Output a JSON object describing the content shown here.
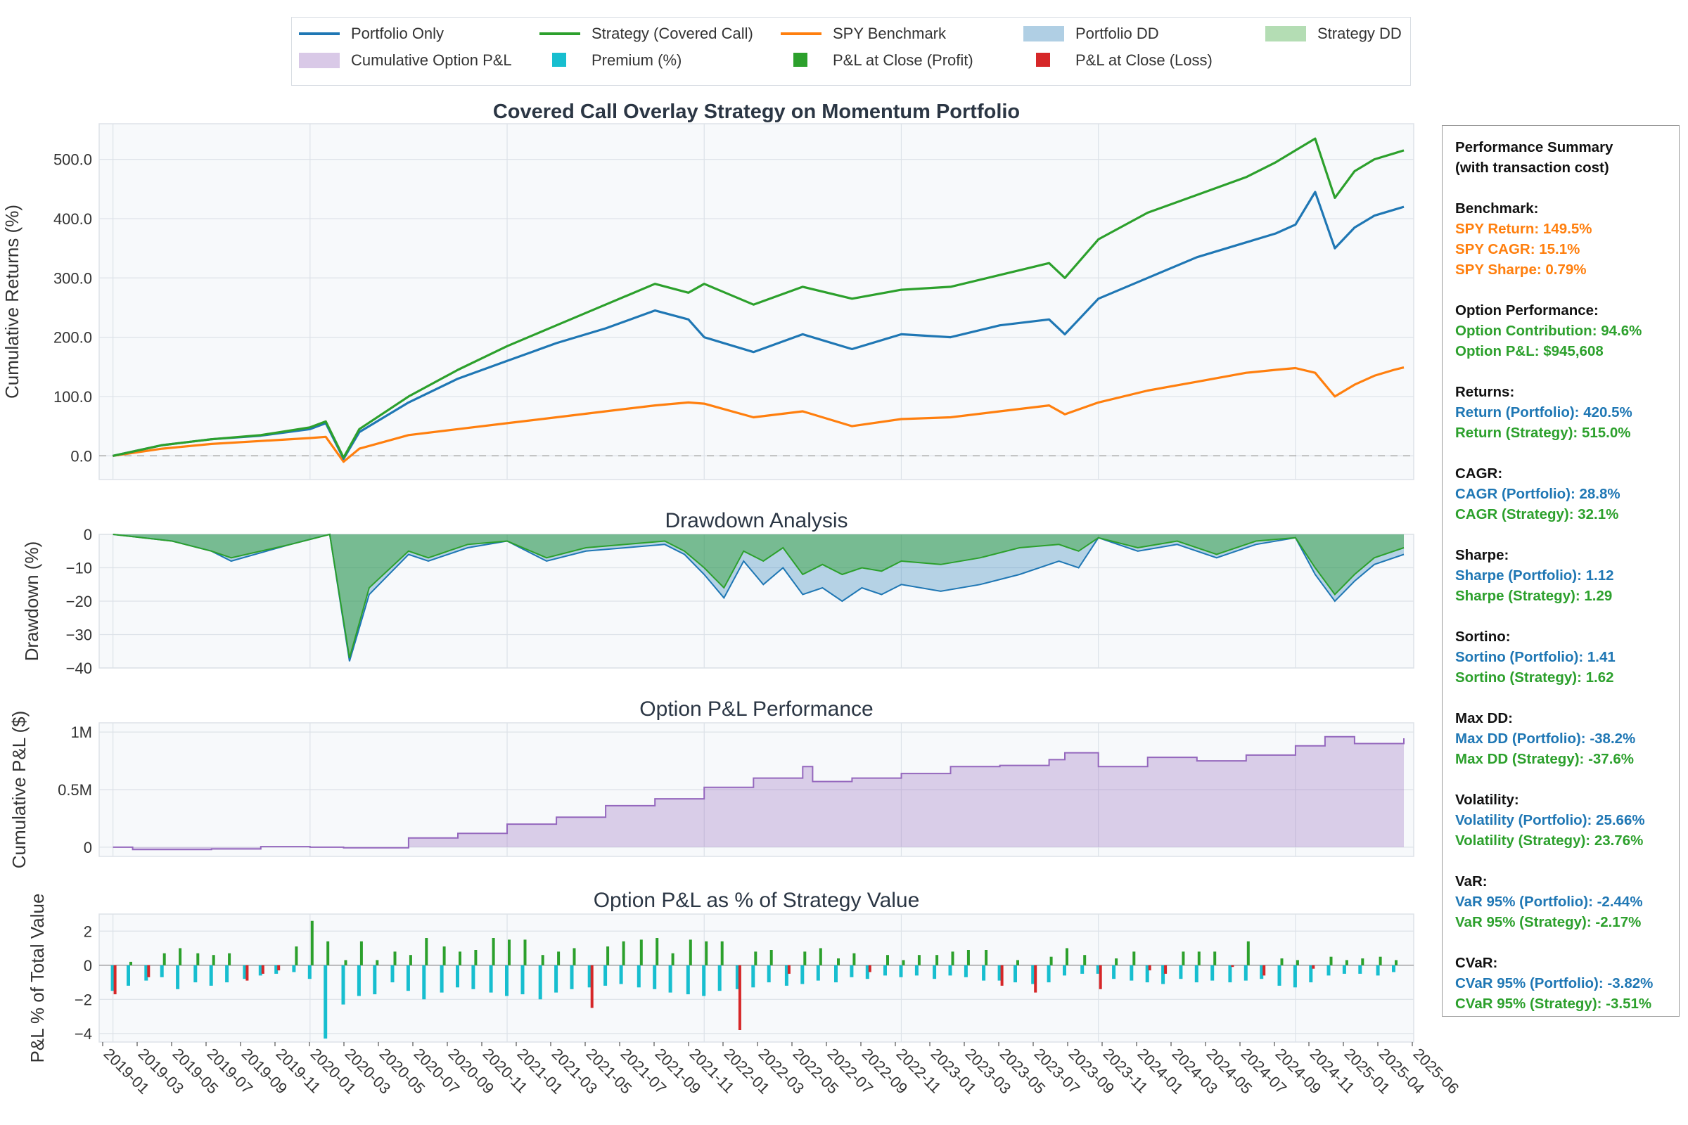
{
  "colors": {
    "portfolio": "#1f77b4",
    "strategy": "#2ca02c",
    "spy": "#ff7f0e",
    "premium": "#17becf",
    "loss": "#d62728",
    "option_pnl": "#9467bd",
    "panel_bg": "#f7f9fb",
    "grid": "#dde2e8"
  },
  "legend": {
    "items": [
      {
        "label": "Portfolio Only",
        "kind": "line",
        "color": "#1f77b4"
      },
      {
        "label": "Strategy (Covered Call)",
        "kind": "line",
        "color": "#2ca02c"
      },
      {
        "label": "SPY Benchmark",
        "kind": "line",
        "color": "#ff7f0e"
      },
      {
        "label": "Portfolio DD",
        "kind": "patch",
        "color": "#1f77b4"
      },
      {
        "label": "Strategy DD",
        "kind": "patch",
        "color": "#2ca02c"
      },
      {
        "label": "Cumulative Option P&L",
        "kind": "patch",
        "color": "#9467bd"
      },
      {
        "label": "Premium (%)",
        "kind": "square",
        "color": "#17becf"
      },
      {
        "label": "P&L at Close (Profit)",
        "kind": "square",
        "color": "#2ca02c"
      },
      {
        "label": "P&L at Close (Loss)",
        "kind": "square",
        "color": "#d62728"
      }
    ]
  },
  "chart_data": [
    {
      "type": "line",
      "title": "Covered Call Overlay Strategy on Momentum Portfolio",
      "xlabel": "",
      "ylabel": "Cumulative Returns (%)",
      "ylim": [
        -40,
        560
      ],
      "yticks": [
        "0.0",
        "100.0",
        "200.0",
        "300.0",
        "400.0",
        "500.0"
      ],
      "x_range": [
        "2019-01",
        "2025-07"
      ],
      "x": [
        2019.0,
        2019.25,
        2019.5,
        2019.75,
        2020.0,
        2020.08,
        2020.17,
        2020.25,
        2020.5,
        2020.75,
        2021.0,
        2021.25,
        2021.5,
        2021.75,
        2021.92,
        2022.0,
        2022.25,
        2022.5,
        2022.75,
        2023.0,
        2023.25,
        2023.5,
        2023.75,
        2023.83,
        2024.0,
        2024.25,
        2024.5,
        2024.75,
        2024.9,
        2025.0,
        2025.1,
        2025.2,
        2025.3,
        2025.4,
        2025.5,
        2025.55
      ],
      "series": [
        {
          "name": "Portfolio Only",
          "values": [
            0,
            18,
            28,
            34,
            45,
            55,
            -5,
            40,
            90,
            130,
            160,
            190,
            215,
            245,
            230,
            200,
            175,
            205,
            180,
            205,
            200,
            220,
            230,
            205,
            265,
            300,
            335,
            360,
            375,
            390,
            445,
            350,
            385,
            405,
            415,
            420
          ]
        },
        {
          "name": "Strategy (Covered Call)",
          "values": [
            0,
            18,
            28,
            35,
            48,
            58,
            -3,
            45,
            100,
            145,
            185,
            220,
            255,
            290,
            275,
            290,
            255,
            285,
            265,
            280,
            285,
            305,
            325,
            300,
            365,
            410,
            440,
            470,
            495,
            515,
            535,
            435,
            480,
            500,
            510,
            515
          ]
        },
        {
          "name": "SPY Benchmark",
          "values": [
            0,
            12,
            20,
            25,
            30,
            32,
            -10,
            12,
            35,
            45,
            55,
            65,
            75,
            85,
            90,
            88,
            65,
            75,
            50,
            62,
            65,
            75,
            85,
            70,
            90,
            110,
            125,
            140,
            145,
            148,
            140,
            100,
            120,
            135,
            145,
            149
          ]
        }
      ]
    },
    {
      "type": "area",
      "title": "Drawdown Analysis",
      "ylabel": "Drawdown (%)",
      "ylim": [
        -40,
        0
      ],
      "yticks": [
        "0",
        "−10",
        "−20",
        "−30",
        "−40"
      ],
      "x": [
        2019.0,
        2019.3,
        2019.5,
        2019.6,
        2019.9,
        2020.1,
        2020.2,
        2020.3,
        2020.5,
        2020.6,
        2020.8,
        2021.0,
        2021.2,
        2021.4,
        2021.6,
        2021.8,
        2021.9,
        2022.0,
        2022.1,
        2022.2,
        2022.3,
        2022.4,
        2022.5,
        2022.6,
        2022.7,
        2022.8,
        2022.9,
        2023.0,
        2023.2,
        2023.4,
        2023.6,
        2023.8,
        2023.9,
        2024.0,
        2024.2,
        2024.4,
        2024.6,
        2024.8,
        2025.0,
        2025.1,
        2025.2,
        2025.3,
        2025.4,
        2025.55
      ],
      "series": [
        {
          "name": "Portfolio DD",
          "values": [
            0,
            -2,
            -5,
            -8,
            -3,
            0,
            -38,
            -18,
            -6,
            -8,
            -4,
            -2,
            -8,
            -5,
            -4,
            -3,
            -6,
            -12,
            -19,
            -8,
            -15,
            -10,
            -18,
            -16,
            -20,
            -16,
            -18,
            -15,
            -17,
            -15,
            -12,
            -8,
            -10,
            -1,
            -5,
            -3,
            -7,
            -3,
            -1,
            -12,
            -20,
            -14,
            -9,
            -6
          ]
        },
        {
          "name": "Strategy DD",
          "values": [
            0,
            -2,
            -5,
            -7,
            -3,
            0,
            -37,
            -16,
            -5,
            -7,
            -3,
            -2,
            -7,
            -4,
            -3,
            -2,
            -5,
            -10,
            -16,
            -5,
            -8,
            -4,
            -12,
            -9,
            -12,
            -10,
            -11,
            -8,
            -9,
            -7,
            -4,
            -3,
            -5,
            -1,
            -4,
            -2,
            -6,
            -2,
            -1,
            -10,
            -18,
            -12,
            -7,
            -4
          ]
        }
      ]
    },
    {
      "type": "area",
      "title": "Option P&L Performance",
      "ylabel": "Cumulative P&L ($)",
      "ylim": [
        -80000,
        1080000
      ],
      "yticks": [
        "0",
        "0.5M",
        "1M"
      ],
      "x": [
        2019.0,
        2019.1,
        2019.5,
        2019.75,
        2020.0,
        2020.17,
        2020.5,
        2020.75,
        2021.0,
        2021.25,
        2021.5,
        2021.75,
        2022.0,
        2022.25,
        2022.5,
        2022.55,
        2022.75,
        2023.0,
        2023.25,
        2023.5,
        2023.75,
        2023.83,
        2024.0,
        2024.25,
        2024.5,
        2024.75,
        2025.0,
        2025.15,
        2025.3,
        2025.55
      ],
      "series": [
        {
          "name": "Cumulative Option P&L",
          "values": [
            0,
            -20000,
            -15000,
            5000,
            0,
            -5000,
            80000,
            120000,
            200000,
            260000,
            360000,
            420000,
            520000,
            600000,
            700000,
            570000,
            600000,
            640000,
            700000,
            710000,
            760000,
            820000,
            700000,
            780000,
            750000,
            800000,
            880000,
            960000,
            900000,
            945608
          ]
        }
      ]
    },
    {
      "type": "bar",
      "title": "Option P&L as % of Strategy Value",
      "ylabel": "P&L % of Total Value",
      "ylim": [
        -4.5,
        3.0
      ],
      "yticks": [
        "−4",
        "−2",
        "0",
        "2"
      ],
      "x": [
        2019.0,
        2019.08,
        2019.17,
        2019.25,
        2019.33,
        2019.42,
        2019.5,
        2019.58,
        2019.67,
        2019.75,
        2019.83,
        2019.92,
        2020.0,
        2020.08,
        2020.17,
        2020.25,
        2020.33,
        2020.42,
        2020.5,
        2020.58,
        2020.67,
        2020.75,
        2020.83,
        2020.92,
        2021.0,
        2021.08,
        2021.17,
        2021.25,
        2021.33,
        2021.42,
        2021.5,
        2021.58,
        2021.67,
        2021.75,
        2021.83,
        2021.92,
        2022.0,
        2022.08,
        2022.17,
        2022.25,
        2022.33,
        2022.42,
        2022.5,
        2022.58,
        2022.67,
        2022.75,
        2022.83,
        2022.92,
        2023.0,
        2023.08,
        2023.17,
        2023.25,
        2023.33,
        2023.42,
        2023.5,
        2023.58,
        2023.67,
        2023.75,
        2023.83,
        2023.92,
        2024.0,
        2024.08,
        2024.17,
        2024.25,
        2024.33,
        2024.42,
        2024.5,
        2024.58,
        2024.67,
        2024.75,
        2024.83,
        2024.92,
        2025.0,
        2025.08,
        2025.17,
        2025.25,
        2025.33,
        2025.42,
        2025.5
      ],
      "series": [
        {
          "name": "Premium (%)",
          "values": [
            -1.5,
            -1.2,
            -0.9,
            -0.7,
            -1.4,
            -1.0,
            -1.2,
            -1.0,
            -0.8,
            -0.6,
            -0.5,
            -0.4,
            -0.8,
            -4.3,
            -2.3,
            -1.8,
            -1.7,
            -1.0,
            -1.5,
            -2.0,
            -1.6,
            -1.3,
            -1.4,
            -1.6,
            -1.8,
            -1.7,
            -2.0,
            -1.6,
            -1.4,
            -1.3,
            -1.2,
            -1.1,
            -1.3,
            -1.4,
            -1.6,
            -1.7,
            -1.8,
            -1.5,
            -1.4,
            -1.3,
            -1.0,
            -1.2,
            -1.1,
            -0.9,
            -1.0,
            -0.7,
            -0.8,
            -0.6,
            -0.7,
            -0.6,
            -0.8,
            -0.6,
            -0.7,
            -0.9,
            -0.9,
            -1.0,
            -1.1,
            -1.0,
            -0.6,
            -0.5,
            -0.5,
            -0.8,
            -0.9,
            -1.0,
            -1.1,
            -0.8,
            -1.0,
            -0.9,
            -1.0,
            -0.9,
            -0.8,
            -1.2,
            -1.3,
            -1.0,
            -0.6,
            -0.5,
            -0.5,
            -0.6,
            -0.4
          ]
        },
        {
          "name": "P&L at Close",
          "values": [
            -1.7,
            0.2,
            -0.7,
            0.7,
            1.0,
            0.7,
            0.6,
            0.7,
            -0.9,
            -0.5,
            -0.3,
            1.1,
            2.6,
            1.4,
            0.3,
            1.4,
            0.3,
            0.8,
            0.6,
            1.6,
            1.1,
            0.8,
            0.9,
            1.6,
            1.5,
            1.5,
            0.6,
            0.8,
            1.0,
            -2.5,
            1.1,
            1.4,
            1.5,
            1.6,
            0.7,
            1.5,
            1.4,
            1.4,
            -3.8,
            0.8,
            0.9,
            -0.5,
            0.8,
            1.0,
            0.4,
            0.7,
            -0.4,
            0.6,
            0.3,
            0.6,
            0.6,
            0.8,
            0.9,
            0.9,
            -1.2,
            0.3,
            -1.6,
            0.5,
            1.0,
            0.6,
            -1.4,
            0.4,
            0.8,
            -0.3,
            -0.5,
            0.8,
            0.8,
            0.8,
            -0.1,
            1.4,
            -0.6,
            0.4,
            0.3,
            -0.2,
            0.5,
            0.3,
            0.4,
            0.5,
            0.3
          ]
        }
      ],
      "x_tick_labels": [
        "2019-01",
        "2019-03",
        "2019-05",
        "2019-07",
        "2019-09",
        "2019-11",
        "2020-01",
        "2020-03",
        "2020-05",
        "2020-07",
        "2020-09",
        "2020-11",
        "2021-01",
        "2021-03",
        "2021-05",
        "2021-07",
        "2021-09",
        "2021-11",
        "2022-01",
        "2022-03",
        "2022-05",
        "2022-07",
        "2022-09",
        "2022-11",
        "2023-01",
        "2023-03",
        "2023-05",
        "2023-07",
        "2023-09",
        "2023-11",
        "2024-01",
        "2024-03",
        "2024-05",
        "2024-07",
        "2024-09",
        "2024-11",
        "2025-01",
        "2025-04",
        "2025-06"
      ]
    }
  ],
  "summary": {
    "title_line1": "Performance Summary",
    "title_line2": "(with transaction cost)",
    "sections": [
      {
        "heading": "Benchmark:",
        "rows": [
          {
            "text": "SPY Return: 149.5%",
            "color": "orange"
          },
          {
            "text": "SPY CAGR: 15.1%",
            "color": "orange"
          },
          {
            "text": "SPY Sharpe: 0.79%",
            "color": "orange"
          }
        ]
      },
      {
        "heading": "Option Performance:",
        "rows": [
          {
            "text": "Option Contribution: 94.6%",
            "color": "green"
          },
          {
            "text": "Option P&L: $945,608",
            "color": "green"
          }
        ]
      },
      {
        "heading": "Returns:",
        "rows": [
          {
            "text": "Return (Portfolio): 420.5%",
            "color": "blue"
          },
          {
            "text": "Return (Strategy): 515.0%",
            "color": "green"
          }
        ]
      },
      {
        "heading": "CAGR:",
        "rows": [
          {
            "text": "CAGR (Portfolio): 28.8%",
            "color": "blue"
          },
          {
            "text": "CAGR (Strategy): 32.1%",
            "color": "green"
          }
        ]
      },
      {
        "heading": "Sharpe:",
        "rows": [
          {
            "text": "Sharpe (Portfolio): 1.12",
            "color": "blue"
          },
          {
            "text": "Sharpe (Strategy): 1.29",
            "color": "green"
          }
        ]
      },
      {
        "heading": "Sortino:",
        "rows": [
          {
            "text": "Sortino (Portfolio): 1.41",
            "color": "blue"
          },
          {
            "text": "Sortino (Strategy): 1.62",
            "color": "green"
          }
        ]
      },
      {
        "heading": "Max DD:",
        "rows": [
          {
            "text": "Max DD (Portfolio): -38.2%",
            "color": "blue"
          },
          {
            "text": "Max DD (Strategy): -37.6%",
            "color": "green"
          }
        ]
      },
      {
        "heading": "Volatility:",
        "rows": [
          {
            "text": "Volatility (Portfolio): 25.66%",
            "color": "blue"
          },
          {
            "text": "Volatility (Strategy): 23.76%",
            "color": "green"
          }
        ]
      },
      {
        "heading": "VaR:",
        "rows": [
          {
            "text": "VaR 95% (Portfolio): -2.44%",
            "color": "blue"
          },
          {
            "text": "VaR 95% (Strategy): -2.17%",
            "color": "green"
          }
        ]
      },
      {
        "heading": "CVaR:",
        "rows": [
          {
            "text": "CVaR 95% (Portfolio): -3.82%",
            "color": "blue"
          },
          {
            "text": "CVaR 95% (Strategy): -3.51%",
            "color": "green"
          }
        ]
      }
    ]
  }
}
